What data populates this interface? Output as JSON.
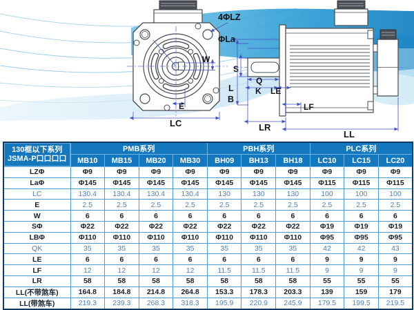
{
  "diagram": {
    "front": {
      "lz": "4ΦLZ",
      "la": "ΦLa",
      "w": "W",
      "e": "E",
      "lc": "LC"
    },
    "side": {
      "s": "S",
      "q": "Q",
      "k": "K",
      "le": "LE",
      "l": "L",
      "b": "B",
      "lf": "LF",
      "lr": "LR",
      "ll": "LL"
    }
  },
  "table": {
    "corner_header": {
      "line1": "130框以下系列",
      "line2": "JSMA-P口口口口"
    },
    "series_groups": [
      {
        "label": "PMB系列",
        "columns": [
          "MB10",
          "MB15",
          "MB20",
          "MB30"
        ]
      },
      {
        "label": "PBH系列",
        "columns": [
          "BH09",
          "BH13",
          "BH18"
        ]
      },
      {
        "label": "PLC系列",
        "columns": [
          "LC10",
          "LC15",
          "LC20"
        ]
      }
    ],
    "rows": [
      {
        "label": "LZΦ",
        "label_tint": "dark",
        "value_tint": "dark",
        "values": [
          "Φ9",
          "Φ9",
          "Φ9",
          "Φ9",
          "Φ9",
          "Φ9",
          "Φ9",
          "Φ9",
          "Φ9",
          "Φ9"
        ]
      },
      {
        "label": "LaΦ",
        "label_tint": "dark",
        "value_tint": "dark",
        "values": [
          "Φ145",
          "Φ145",
          "Φ145",
          "Φ145",
          "Φ145",
          "Φ145",
          "Φ145",
          "Φ115",
          "Φ115",
          "Φ115"
        ]
      },
      {
        "label": "LC",
        "label_tint": "blue",
        "value_tint": "blue",
        "values": [
          "130.4",
          "130.4",
          "130.4",
          "130.4",
          "130",
          "130",
          "130",
          "100",
          "100",
          "100"
        ]
      },
      {
        "label": "E",
        "label_tint": "dark",
        "value_tint": "blue",
        "values": [
          "2.5",
          "2.5",
          "2.5",
          "2.5",
          "2.5",
          "2.5",
          "2.5",
          "2.5",
          "2.5",
          "2.5"
        ]
      },
      {
        "label": "W",
        "label_tint": "dark",
        "value_tint": "dark",
        "values": [
          "6",
          "6",
          "6",
          "6",
          "6",
          "6",
          "6",
          "6",
          "6",
          "6"
        ]
      },
      {
        "label": "SΦ",
        "label_tint": "dark",
        "value_tint": "dark",
        "values": [
          "Φ22",
          "Φ22",
          "Φ22",
          "Φ22",
          "Φ22",
          "Φ22",
          "Φ22",
          "Φ19",
          "Φ19",
          "Φ19"
        ]
      },
      {
        "label": "LBΦ",
        "label_tint": "dark",
        "value_tint": "dark",
        "values": [
          "Φ110",
          "Φ110",
          "Φ110",
          "Φ110",
          "Φ110",
          "Φ110",
          "Φ110",
          "Φ95",
          "Φ95",
          "Φ95"
        ]
      },
      {
        "label": "QK",
        "label_tint": "blue",
        "value_tint": "blue",
        "values": [
          "35",
          "35",
          "35",
          "35",
          "35",
          "35",
          "35",
          "42",
          "42",
          "43"
        ]
      },
      {
        "label": "LE",
        "label_tint": "dark",
        "value_tint": "dark",
        "values": [
          "6",
          "6",
          "6",
          "6",
          "6",
          "6",
          "6",
          "9",
          "9",
          "9"
        ]
      },
      {
        "label": "LF",
        "label_tint": "dark",
        "value_tint": "blue",
        "values": [
          "12",
          "12",
          "12",
          "12",
          "11.5",
          "11.5",
          "11.5",
          "9",
          "9",
          "9"
        ]
      },
      {
        "label": "LR",
        "label_tint": "dark",
        "value_tint": "dark",
        "values": [
          "58",
          "58",
          "58",
          "58",
          "58",
          "58",
          "58",
          "55",
          "55",
          "55"
        ]
      },
      {
        "label": "LL(不带煞车)",
        "label_tint": "dark",
        "value_tint": "dark",
        "values": [
          "164.8",
          "184.8",
          "214.8",
          "264.8",
          "153.3",
          "178.3",
          "203.3",
          "139",
          "159",
          "179"
        ]
      },
      {
        "label": "LL(带煞车)",
        "label_tint": "dark",
        "value_tint": "blue",
        "values": [
          "219.3",
          "239.3",
          "268.3",
          "318.3",
          "195.9",
          "220.9",
          "245.9",
          "179.5",
          "199.5",
          "219.5"
        ]
      }
    ]
  },
  "colors": {
    "header_blue": "#1478be",
    "grid_blue": "#4a9cd6",
    "outer_border": "#103a63",
    "text_dark": "#17212d",
    "text_blue": "#4d80b8",
    "dim_line": "#4553c4",
    "wave_light": "#cfe9f7",
    "wave_strong": "#1f90cd"
  }
}
